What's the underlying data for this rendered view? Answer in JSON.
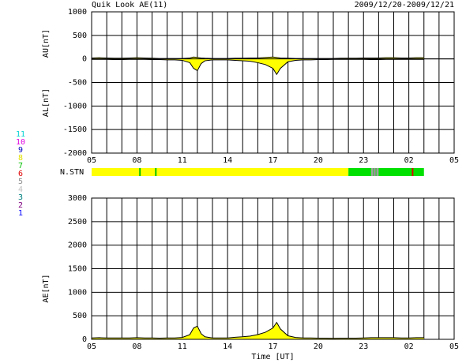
{
  "header": {
    "title": "Quik Look AE(11)",
    "date_range": "2009/12/20-2009/12/21"
  },
  "station_bar": {
    "label": "N.STN",
    "segments": [
      {
        "start": 5,
        "end": 22,
        "color": "#ffff00"
      },
      {
        "start": 22,
        "end": 27,
        "color": "#00e000"
      },
      {
        "start": 8.15,
        "end": 8.25,
        "color": "#00c000"
      },
      {
        "start": 9.2,
        "end": 9.3,
        "color": "#00c000"
      },
      {
        "start": 23.5,
        "end": 23.65,
        "color": "#a0a0a0"
      },
      {
        "start": 23.7,
        "end": 23.8,
        "color": "#c080c0"
      },
      {
        "start": 23.85,
        "end": 24,
        "color": "#a0a0a0"
      },
      {
        "start": 26.2,
        "end": 26.3,
        "color": "#e00000"
      }
    ]
  },
  "station_legend": [
    {
      "label": "11",
      "color": "#00d0d0"
    },
    {
      "label": "10",
      "color": "#e000e0"
    },
    {
      "label": "9",
      "color": "#0000c0"
    },
    {
      "label": "8",
      "color": "#e0e000"
    },
    {
      "label": "7",
      "color": "#00c000"
    },
    {
      "label": "6",
      "color": "#e00000"
    },
    {
      "label": "5",
      "color": "#909090"
    },
    {
      "label": "4",
      "color": "#c0c0c0"
    },
    {
      "label": "3",
      "color": "#008080"
    },
    {
      "label": "2",
      "color": "#800080"
    },
    {
      "label": "1",
      "color": "#0000ff"
    }
  ],
  "chart_data": [
    {
      "type": "area",
      "ylabel": [
        "AU[nT]",
        "AL[nT]"
      ],
      "x": [
        5,
        5.5,
        6,
        6.5,
        7,
        7.5,
        8,
        8.5,
        9,
        9.5,
        10,
        10.5,
        11,
        11.5,
        11.75,
        12,
        12.25,
        12.5,
        13,
        13.5,
        14,
        14.5,
        15,
        15.5,
        16,
        16.5,
        17,
        17.25,
        17.5,
        18,
        18.5,
        19,
        19.5,
        20,
        20.5,
        21,
        21.5,
        22,
        22.5,
        23,
        23.5,
        24,
        24.5,
        25,
        25.5,
        26,
        26.5,
        27
      ],
      "series": [
        {
          "name": "AU",
          "color": "#ffff00",
          "values": [
            20,
            25,
            20,
            15,
            15,
            20,
            25,
            20,
            15,
            10,
            10,
            10,
            10,
            20,
            40,
            30,
            20,
            15,
            10,
            10,
            10,
            15,
            15,
            20,
            20,
            30,
            40,
            30,
            20,
            15,
            10,
            10,
            10,
            10,
            10,
            10,
            15,
            15,
            15,
            20,
            20,
            20,
            25,
            25,
            20,
            20,
            25,
            25
          ]
        },
        {
          "name": "AL",
          "color": "#ffff00",
          "values": [
            -10,
            -10,
            -10,
            -15,
            -15,
            -10,
            -10,
            -10,
            -15,
            -15,
            -20,
            -20,
            -30,
            -80,
            -200,
            -250,
            -100,
            -40,
            -20,
            -20,
            -20,
            -30,
            -40,
            -50,
            -80,
            -120,
            -200,
            -330,
            -200,
            -60,
            -30,
            -20,
            -20,
            -15,
            -15,
            -10,
            -10,
            -10,
            -10,
            -10,
            -15,
            -15,
            -10,
            -10,
            -10,
            -10,
            -10,
            -10
          ]
        }
      ],
      "xlim": [
        5,
        29
      ],
      "xticks": [
        {
          "value": 5,
          "label": "05"
        },
        {
          "value": 8,
          "label": "08"
        },
        11,
        14,
        17,
        20,
        23,
        {
          "value": 26,
          "label": "02"
        },
        {
          "value": 29,
          "label": "05"
        }
      ],
      "xgrid": [
        5,
        6,
        7,
        8,
        9,
        10,
        11,
        12,
        13,
        14,
        15,
        16,
        17,
        18,
        19,
        20,
        21,
        22,
        23,
        24,
        25,
        26,
        27,
        28,
        29
      ],
      "ylim": [
        -2000,
        1000
      ],
      "yticks": [
        -2000,
        -1500,
        -1000,
        -500,
        0,
        500,
        1000
      ]
    },
    {
      "type": "area",
      "ylabel": [
        "AE[nT]"
      ],
      "xlabel": "Time [UT]",
      "x": [
        5,
        5.5,
        6,
        6.5,
        7,
        7.5,
        8,
        8.5,
        9,
        9.5,
        10,
        10.5,
        11,
        11.5,
        11.75,
        12,
        12.25,
        12.5,
        13,
        13.5,
        14,
        14.5,
        15,
        15.5,
        16,
        16.5,
        17,
        17.25,
        17.5,
        18,
        18.5,
        19,
        19.5,
        20,
        20.5,
        21,
        21.5,
        22,
        22.5,
        23,
        23.5,
        24,
        24.5,
        25,
        25.5,
        26,
        26.5,
        27
      ],
      "series": [
        {
          "name": "AE",
          "color": "#ffff00",
          "values": [
            30,
            35,
            30,
            30,
            30,
            30,
            35,
            30,
            30,
            25,
            30,
            30,
            40,
            100,
            240,
            280,
            120,
            55,
            30,
            30,
            30,
            45,
            55,
            70,
            100,
            150,
            240,
            360,
            220,
            75,
            40,
            30,
            30,
            25,
            25,
            20,
            25,
            25,
            25,
            30,
            35,
            35,
            35,
            35,
            30,
            30,
            35,
            35
          ]
        }
      ],
      "xlim": [
        5,
        29
      ],
      "xticks": [
        {
          "value": 5,
          "label": "05"
        },
        {
          "value": 8,
          "label": "08"
        },
        11,
        14,
        17,
        20,
        23,
        {
          "value": 26,
          "label": "02"
        },
        {
          "value": 29,
          "label": "05"
        }
      ],
      "xgrid": [
        5,
        6,
        7,
        8,
        9,
        10,
        11,
        12,
        13,
        14,
        15,
        16,
        17,
        18,
        19,
        20,
        21,
        22,
        23,
        24,
        25,
        26,
        27,
        28,
        29
      ],
      "ylim": [
        0,
        3000
      ],
      "yticks": [
        0,
        500,
        1000,
        1500,
        2000,
        2500,
        3000
      ]
    }
  ]
}
